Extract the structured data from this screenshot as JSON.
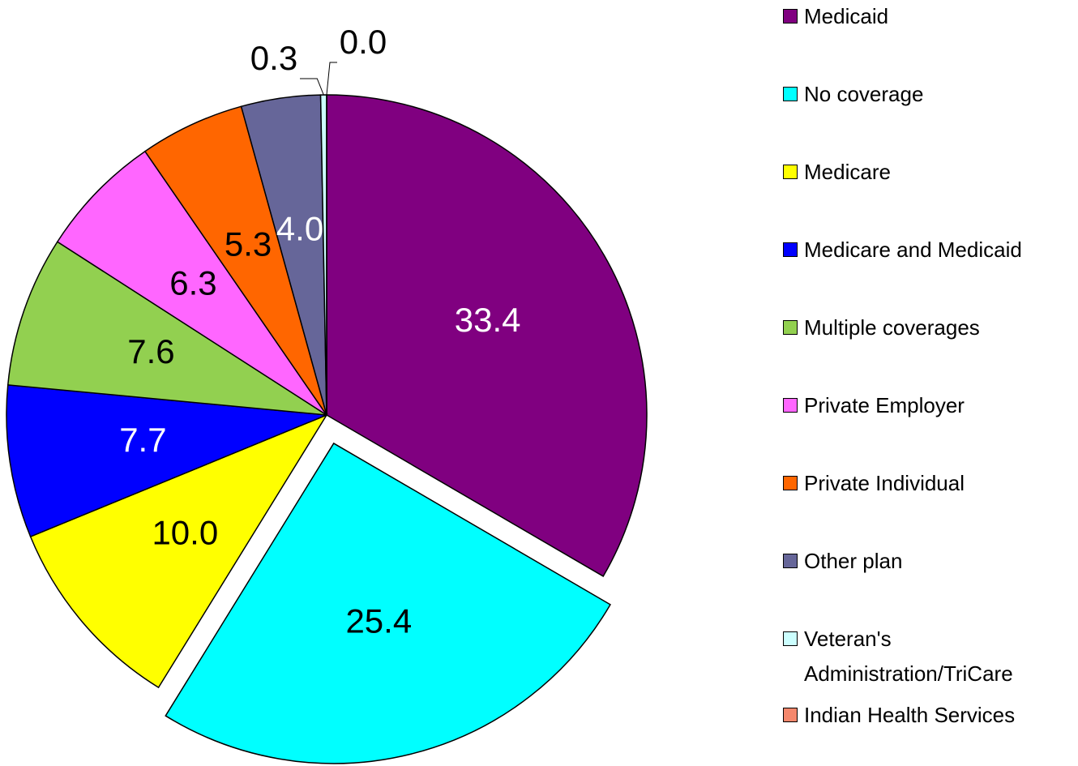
{
  "chart_data": {
    "type": "pie",
    "categories": [
      "Medicaid",
      "No coverage",
      "Medicare",
      "Medicare and Medicaid",
      "Multiple coverages",
      "Private Employer",
      "Private Individual",
      "Other plan",
      "Veteran's Administration/TriCare",
      "Indian Health Services"
    ],
    "values": [
      33.4,
      25.4,
      10.0,
      7.7,
      7.6,
      6.3,
      5.3,
      4.0,
      0.3,
      0.0
    ],
    "value_labels": [
      "33.4",
      "25.4",
      "10.0",
      "7.7",
      "7.6",
      "6.3",
      "5.3",
      "4.0",
      "0.3",
      "0.0"
    ],
    "colors": [
      "#800080",
      "#00ffff",
      "#ffff00",
      "#0000ff",
      "#92d050",
      "#ff66ff",
      "#ff6600",
      "#666699",
      "#ccffff",
      "#f4876c"
    ],
    "exploded": [
      1
    ],
    "legend": "right"
  }
}
